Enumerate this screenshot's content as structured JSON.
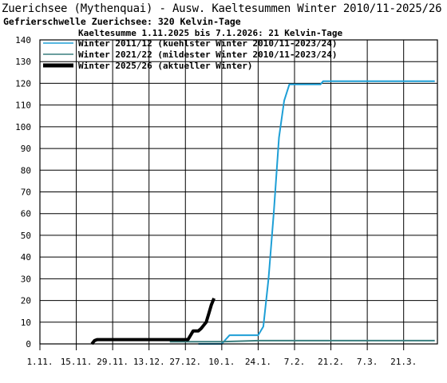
{
  "title": "Zuerichsee (Mythenquai) - Ausw. Kaeltesummen Winter 2010/11-2025/26",
  "subtitle": "Gefrierschwelle Zuerichsee: 320 Kelvin-Tage",
  "chart_data": {
    "type": "line",
    "legend_title": "Kaeltesumme 1.11.2025 bis 7.1.2026: 21 Kelvin-Tage",
    "legend_position": "top-left",
    "grid": true,
    "ylim": [
      0,
      140
    ],
    "yticks": [
      0,
      10,
      20,
      30,
      40,
      50,
      60,
      70,
      80,
      90,
      100,
      110,
      120,
      130,
      140
    ],
    "xlim_days": [
      0,
      153
    ],
    "xtick_labels": [
      "1.11.",
      "15.11.",
      "29.11.",
      "13.12.",
      "27.12.",
      "10.1.",
      "24.1.",
      "7.2.",
      "21.2.",
      "7.3.",
      "21.3."
    ],
    "xtick_days": [
      0,
      14,
      28,
      42,
      56,
      70,
      84,
      98,
      112,
      126,
      140
    ],
    "series": [
      {
        "name": "Winter 2011/12 (kuehlster Winter 2010/11-2023/24)",
        "color": "#1e9fd6",
        "width": 2,
        "x_dates": [
          "1.1.",
          "10.1.",
          "13.1.",
          "24.1.",
          "26.1.",
          "28.1.",
          "30.1.",
          "1.2.",
          "3.2.",
          "5.2.",
          "7.2.",
          "9.2.",
          "11.2.",
          "12.2.",
          "14.2.",
          "17.2.",
          "18.2.",
          "21.2.",
          "7.3.",
          "21.3.",
          "2.4."
        ],
        "x": [
          61,
          70,
          73,
          84,
          86,
          88,
          90,
          92,
          94,
          96,
          98,
          100,
          102,
          103,
          105,
          108,
          109,
          112,
          126,
          140,
          152
        ],
        "y": [
          0,
          0,
          4,
          4,
          8,
          30,
          60,
          95,
          112,
          119.5,
          119.5,
          119.5,
          119.5,
          119.5,
          119.5,
          119.5,
          121,
          121,
          121,
          121,
          121
        ]
      },
      {
        "name": "Winter 2021/22 (mildester Winter 2010/11-2023/24)",
        "color": "#3a7f7f",
        "width": 2,
        "x_dates": [
          "21.12.",
          "27.12.",
          "10.1.",
          "24.1.",
          "7.2.",
          "21.2.",
          "7.3.",
          "21.3.",
          "2.4."
        ],
        "x": [
          50,
          56,
          70,
          84,
          98,
          112,
          126,
          140,
          152
        ],
        "y": [
          1,
          1,
          1,
          1.5,
          1.5,
          1.5,
          1.5,
          1.5,
          1.5
        ]
      },
      {
        "name": "Winter 2025/26 (aktueller Winter)",
        "color": "#000000",
        "width": 4,
        "x_dates": [
          "21.11.",
          "22.11.",
          "23.11.",
          "25.11.",
          "1.12.",
          "10.12.",
          "20.12.",
          "28.12.",
          "29.12.",
          "30.12.",
          "1.1.",
          "2.1.",
          "4.1.",
          "5.1.",
          "6.1.",
          "7.1."
        ],
        "x": [
          20,
          21,
          22,
          24,
          30,
          39,
          49,
          57,
          58,
          59,
          61,
          62,
          64,
          65,
          66,
          67
        ],
        "y": [
          0,
          1.5,
          2,
          2,
          2,
          2,
          2,
          2,
          4,
          6,
          6,
          7,
          10,
          14,
          18,
          21
        ]
      }
    ]
  }
}
